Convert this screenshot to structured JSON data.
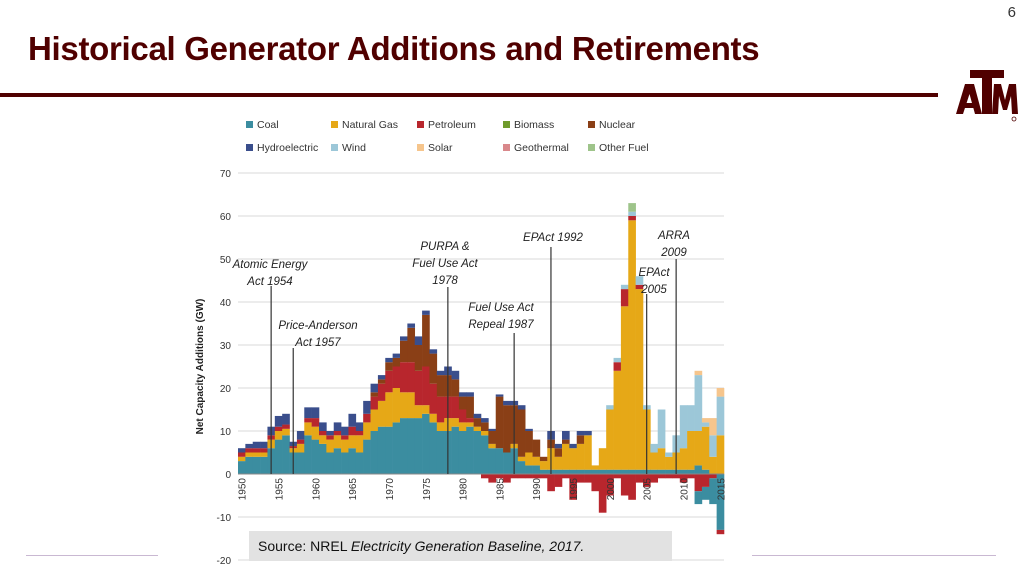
{
  "page_number": "6",
  "slide_title": "Historical Generator Additions and Retirements",
  "logo_alt": "ATM",
  "source": {
    "prefix": "Source: NREL ",
    "title": "Electricity Generation Baseline, 2017."
  },
  "colors": {
    "title": "#500000",
    "Coal": "#3b8da0",
    "Natural Gas": "#e6a817",
    "Petroleum": "#b8262d",
    "Biomass": "#6f9b2c",
    "Nuclear": "#8a3f16",
    "Hydroelectric": "#3a4e8c",
    "Wind": "#9cc7d8",
    "Solar": "#f6c58c",
    "Geothermal": "#d9888b",
    "Other Fuel": "#9ec48a"
  },
  "chart_data": {
    "type": "bar",
    "stacked": true,
    "ylabel": "Net Capacity Additions (GW)",
    "ylim": [
      -20,
      70
    ],
    "yticks": [
      -20,
      -10,
      0,
      10,
      20,
      30,
      40,
      50,
      60,
      70
    ],
    "xticks": [
      "1950",
      "1955",
      "1960",
      "1965",
      "1970",
      "1975",
      "1980",
      "1985",
      "1990",
      "1995",
      "2000",
      "2005",
      "2010",
      "2015"
    ],
    "xlim": [
      1949.5,
      2015.5
    ],
    "legend_position": "top",
    "legend": [
      "Coal",
      "Natural Gas",
      "Petroleum",
      "Biomass",
      "Nuclear",
      "Hydroelectric",
      "Wind",
      "Solar",
      "Geothermal",
      "Other Fuel"
    ],
    "annotations": [
      {
        "lines": [
          "Atomic Energy",
          "Act 1954"
        ],
        "year": 1954
      },
      {
        "lines": [
          "Price-Anderson",
          "Act 1957"
        ],
        "year": 1957
      },
      {
        "lines": [
          "PURPA &",
          "Fuel Use Act",
          "1978"
        ],
        "year": 1978
      },
      {
        "lines": [
          "Fuel Use Act",
          "Repeal 1987"
        ],
        "year": 1987
      },
      {
        "lines": [
          "EPAct 1992"
        ],
        "year": 1992
      },
      {
        "lines": [
          "EPAct",
          "2005"
        ],
        "year": 2005
      },
      {
        "lines": [
          "ARRA",
          "2009"
        ],
        "year": 2009
      }
    ],
    "bars": [
      {
        "year": 1950,
        "pos": {
          "Coal": 3,
          "Natural Gas": 1,
          "Petroleum": 1,
          "Hydroelectric": 1
        }
      },
      {
        "year": 1951,
        "pos": {
          "Coal": 4,
          "Natural Gas": 1,
          "Petroleum": 1,
          "Hydroelectric": 1
        }
      },
      {
        "year": 1952,
        "pos": {
          "Coal": 4,
          "Natural Gas": 1,
          "Petroleum": 1,
          "Hydroelectric": 1.5
        }
      },
      {
        "year": 1953,
        "pos": {
          "Coal": 4,
          "Natural Gas": 1,
          "Petroleum": 1,
          "Hydroelectric": 1.5
        }
      },
      {
        "year": 1954,
        "pos": {
          "Coal": 6,
          "Natural Gas": 2,
          "Petroleum": 1,
          "Hydroelectric": 2
        }
      },
      {
        "year": 1955,
        "pos": {
          "Coal": 8,
          "Natural Gas": 2,
          "Petroleum": 1,
          "Hydroelectric": 2.5
        }
      },
      {
        "year": 1956,
        "pos": {
          "Coal": 9,
          "Natural Gas": 1.5,
          "Petroleum": 1,
          "Hydroelectric": 2.5
        }
      },
      {
        "year": 1957,
        "pos": {
          "Coal": 5,
          "Natural Gas": 1,
          "Petroleum": 0.5,
          "Hydroelectric": 1
        }
      },
      {
        "year": 1958,
        "pos": {
          "Coal": 5,
          "Natural Gas": 2,
          "Petroleum": 1,
          "Hydroelectric": 2
        }
      },
      {
        "year": 1959,
        "pos": {
          "Coal": 9,
          "Natural Gas": 3,
          "Petroleum": 1,
          "Hydroelectric": 2.5
        }
      },
      {
        "year": 1960,
        "pos": {
          "Coal": 8,
          "Natural Gas": 3,
          "Petroleum": 2,
          "Hydroelectric": 2.5
        }
      },
      {
        "year": 1961,
        "pos": {
          "Coal": 7,
          "Natural Gas": 2,
          "Petroleum": 1,
          "Hydroelectric": 2
        }
      },
      {
        "year": 1962,
        "pos": {
          "Coal": 5,
          "Natural Gas": 3,
          "Petroleum": 1,
          "Hydroelectric": 1
        }
      },
      {
        "year": 1963,
        "pos": {
          "Coal": 6,
          "Natural Gas": 3,
          "Petroleum": 1,
          "Hydroelectric": 2
        }
      },
      {
        "year": 1964,
        "pos": {
          "Coal": 5,
          "Natural Gas": 3,
          "Petroleum": 1,
          "Hydroelectric": 2
        }
      },
      {
        "year": 1965,
        "pos": {
          "Coal": 6,
          "Natural Gas": 3,
          "Petroleum": 2,
          "Hydroelectric": 3
        }
      },
      {
        "year": 1966,
        "pos": {
          "Coal": 5,
          "Natural Gas": 4,
          "Petroleum": 1,
          "Hydroelectric": 2
        }
      },
      {
        "year": 1967,
        "pos": {
          "Coal": 8,
          "Natural Gas": 4,
          "Petroleum": 2,
          "Hydroelectric": 3
        }
      },
      {
        "year": 1968,
        "pos": {
          "Coal": 10,
          "Natural Gas": 5,
          "Petroleum": 3,
          "Nuclear": 1,
          "Hydroelectric": 2
        }
      },
      {
        "year": 1969,
        "pos": {
          "Coal": 11,
          "Natural Gas": 6,
          "Petroleum": 4,
          "Nuclear": 1,
          "Hydroelectric": 1
        }
      },
      {
        "year": 1970,
        "pos": {
          "Coal": 11,
          "Natural Gas": 8,
          "Petroleum": 5,
          "Nuclear": 2,
          "Hydroelectric": 1
        }
      },
      {
        "year": 1971,
        "pos": {
          "Coal": 12,
          "Natural Gas": 8,
          "Petroleum": 5,
          "Nuclear": 2,
          "Hydroelectric": 1
        }
      },
      {
        "year": 1972,
        "pos": {
          "Coal": 13,
          "Natural Gas": 6,
          "Petroleum": 7,
          "Nuclear": 5,
          "Hydroelectric": 1
        }
      },
      {
        "year": 1973,
        "pos": {
          "Coal": 13,
          "Natural Gas": 6,
          "Petroleum": 7,
          "Nuclear": 8,
          "Hydroelectric": 1
        }
      },
      {
        "year": 1974,
        "pos": {
          "Coal": 13,
          "Natural Gas": 3,
          "Petroleum": 8,
          "Nuclear": 6,
          "Hydroelectric": 2
        }
      },
      {
        "year": 1975,
        "pos": {
          "Coal": 14,
          "Natural Gas": 2,
          "Petroleum": 9,
          "Nuclear": 12,
          "Hydroelectric": 1
        }
      },
      {
        "year": 1976,
        "pos": {
          "Coal": 12,
          "Natural Gas": 2,
          "Petroleum": 7,
          "Nuclear": 7,
          "Hydroelectric": 1
        }
      },
      {
        "year": 1977,
        "pos": {
          "Coal": 10,
          "Natural Gas": 2,
          "Petroleum": 6,
          "Nuclear": 5,
          "Hydroelectric": 1
        }
      },
      {
        "year": 1978,
        "pos": {
          "Coal": 10,
          "Natural Gas": 3,
          "Petroleum": 5,
          "Nuclear": 5,
          "Hydroelectric": 2
        }
      },
      {
        "year": 1979,
        "pos": {
          "Coal": 11,
          "Natural Gas": 2,
          "Petroleum": 5,
          "Nuclear": 4,
          "Hydroelectric": 2
        }
      },
      {
        "year": 1980,
        "pos": {
          "Coal": 10,
          "Natural Gas": 2,
          "Petroleum": 3,
          "Nuclear": 3,
          "Hydroelectric": 1
        }
      },
      {
        "year": 1981,
        "pos": {
          "Coal": 11,
          "Natural Gas": 1,
          "Petroleum": 1,
          "Nuclear": 5,
          "Hydroelectric": 1
        }
      },
      {
        "year": 1982,
        "pos": {
          "Coal": 10,
          "Natural Gas": 1,
          "Nuclear": 2,
          "Hydroelectric": 1
        }
      },
      {
        "year": 1983,
        "pos": {
          "Coal": 9,
          "Natural Gas": 1,
          "Nuclear": 2,
          "Hydroelectric": 1
        },
        "neg": {
          "Petroleum": -1
        }
      },
      {
        "year": 1984,
        "pos": {
          "Coal": 6,
          "Natural Gas": 1,
          "Nuclear": 3,
          "Hydroelectric": 0.5
        },
        "neg": {
          "Petroleum": -2
        }
      },
      {
        "year": 1985,
        "pos": {
          "Coal": 6,
          "Nuclear": 12,
          "Hydroelectric": 0.5
        },
        "neg": {
          "Petroleum": -1
        }
      },
      {
        "year": 1986,
        "pos": {
          "Coal": 5,
          "Nuclear": 11,
          "Hydroelectric": 1
        },
        "neg": {
          "Petroleum": -2
        }
      },
      {
        "year": 1987,
        "pos": {
          "Coal": 6,
          "Natural Gas": 1,
          "Nuclear": 9,
          "Hydroelectric": 1
        },
        "neg": {
          "Petroleum": -1
        }
      },
      {
        "year": 1988,
        "pos": {
          "Coal": 3,
          "Natural Gas": 1,
          "Nuclear": 11,
          "Hydroelectric": 1
        },
        "neg": {
          "Petroleum": -1
        }
      },
      {
        "year": 1989,
        "pos": {
          "Coal": 2,
          "Natural Gas": 3,
          "Nuclear": 5,
          "Hydroelectric": 0.5
        },
        "neg": {
          "Petroleum": -1
        }
      },
      {
        "year": 1990,
        "pos": {
          "Coal": 2,
          "Natural Gas": 2,
          "Nuclear": 4
        },
        "neg": {
          "Petroleum": -1
        }
      },
      {
        "year": 1991,
        "pos": {
          "Coal": 1,
          "Natural Gas": 2,
          "Nuclear": 1
        },
        "neg": {
          "Petroleum": -1
        }
      },
      {
        "year": 1992,
        "pos": {
          "Coal": 1,
          "Natural Gas": 5,
          "Nuclear": 2,
          "Hydroelectric": 2
        },
        "neg": {
          "Petroleum": -4
        }
      },
      {
        "year": 1993,
        "pos": {
          "Coal": 1,
          "Natural Gas": 3,
          "Nuclear": 2,
          "Hydroelectric": 1
        },
        "neg": {
          "Petroleum": -3
        }
      },
      {
        "year": 1994,
        "pos": {
          "Coal": 1,
          "Natural Gas": 6,
          "Nuclear": 1,
          "Hydroelectric": 2
        },
        "neg": {
          "Petroleum": -1
        }
      },
      {
        "year": 1995,
        "pos": {
          "Coal": 1,
          "Natural Gas": 5,
          "Hydroelectric": 1
        },
        "neg": {
          "Petroleum": -6
        }
      },
      {
        "year": 1996,
        "pos": {
          "Coal": 1,
          "Natural Gas": 6,
          "Nuclear": 2,
          "Hydroelectric": 1
        },
        "neg": {
          "Petroleum": -2
        }
      },
      {
        "year": 1997,
        "pos": {
          "Coal": 1,
          "Natural Gas": 8,
          "Hydroelectric": 1
        },
        "neg": {
          "Petroleum": -2
        }
      },
      {
        "year": 1998,
        "pos": {
          "Coal": 1,
          "Natural Gas": 1
        },
        "neg": {
          "Petroleum": -4
        }
      },
      {
        "year": 1999,
        "pos": {
          "Coal": 1,
          "Natural Gas": 5
        },
        "neg": {
          "Petroleum": -9
        }
      },
      {
        "year": 2000,
        "pos": {
          "Coal": 1,
          "Natural Gas": 14,
          "Wind": 1
        },
        "neg": {
          "Petroleum": -5
        }
      },
      {
        "year": 2001,
        "pos": {
          "Coal": 1,
          "Natural Gas": 23,
          "Petroleum": 2,
          "Wind": 1
        },
        "neg": {
          "Petroleum": -1
        }
      },
      {
        "year": 2002,
        "pos": {
          "Coal": 1,
          "Natural Gas": 38,
          "Petroleum": 4,
          "Wind": 1
        },
        "neg": {
          "Petroleum": -5
        }
      },
      {
        "year": 2003,
        "pos": {
          "Coal": 1,
          "Natural Gas": 58,
          "Petroleum": 1,
          "Wind": 1,
          "Other Fuel": 2
        },
        "neg": {
          "Petroleum": -6
        }
      },
      {
        "year": 2004,
        "pos": {
          "Coal": 1,
          "Natural Gas": 42,
          "Petroleum": 1,
          "Wind": 2
        },
        "neg": {
          "Petroleum": -2
        }
      },
      {
        "year": 2005,
        "pos": {
          "Coal": 1,
          "Natural Gas": 14,
          "Wind": 1
        },
        "neg": {
          "Petroleum": -3
        }
      },
      {
        "year": 2006,
        "pos": {
          "Coal": 1,
          "Natural Gas": 4,
          "Wind": 2
        },
        "neg": {
          "Petroleum": -2
        }
      },
      {
        "year": 2007,
        "pos": {
          "Coal": 1,
          "Natural Gas": 5,
          "Wind": 9
        },
        "neg": {
          "Petroleum": -1
        }
      },
      {
        "year": 2008,
        "pos": {
          "Coal": 1,
          "Natural Gas": 3,
          "Wind": 1
        },
        "neg": {
          "Petroleum": -1
        }
      },
      {
        "year": 2009,
        "pos": {
          "Coal": 1,
          "Natural Gas": 4,
          "Wind": 4
        },
        "neg": {
          "Petroleum": -1
        }
      },
      {
        "year": 2010,
        "pos": {
          "Coal": 1,
          "Natural Gas": 5,
          "Wind": 10
        },
        "neg": {
          "Petroleum": -2
        }
      },
      {
        "year": 2011,
        "pos": {
          "Coal": 1,
          "Natural Gas": 9,
          "Wind": 6
        },
        "neg": {
          "Petroleum": -1
        }
      },
      {
        "year": 2012,
        "pos": {
          "Coal": 2,
          "Natural Gas": 8,
          "Wind": 13,
          "Solar": 1
        },
        "neg": {
          "Petroleum": -4,
          "Coal": -3
        }
      },
      {
        "year": 2013,
        "pos": {
          "Coal": 1,
          "Natural Gas": 10,
          "Wind": 1,
          "Solar": 1
        },
        "neg": {
          "Petroleum": -3,
          "Coal": -3
        }
      },
      {
        "year": 2014,
        "pos": {
          "Natural Gas": 4,
          "Wind": 5,
          "Solar": 4
        },
        "neg": {
          "Petroleum": -1,
          "Coal": -6
        }
      },
      {
        "year": 2015,
        "pos": {
          "Natural Gas": 9,
          "Wind": 9,
          "Solar": 2
        },
        "neg": {
          "Coal": -13,
          "Petroleum": -1
        }
      }
    ]
  }
}
